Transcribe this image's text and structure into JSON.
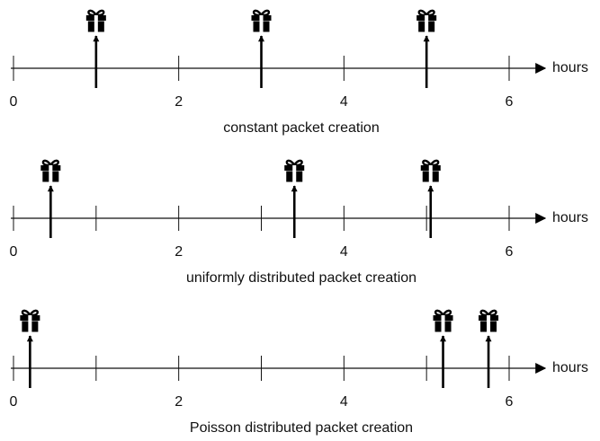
{
  "panels": [
    {
      "caption": "constant packet creation",
      "axis_label": "hours",
      "xlim": [
        0,
        6
      ],
      "ticks": [
        0,
        2,
        4,
        6
      ],
      "minor_ticks": [
        1,
        3,
        5
      ],
      "events": [
        1,
        3,
        5
      ]
    },
    {
      "caption": "uniformly distributed packet creation",
      "axis_label": "hours",
      "xlim": [
        0,
        6
      ],
      "ticks": [
        0,
        2,
        4,
        6
      ],
      "minor_ticks": [
        1,
        3,
        5
      ],
      "events": [
        0.45,
        3.4,
        5.05
      ]
    },
    {
      "caption": "Poisson distributed packet creation",
      "axis_label": "hours",
      "xlim": [
        0,
        6
      ],
      "ticks": [
        0,
        2,
        4,
        6
      ],
      "minor_ticks": [
        1,
        3,
        5
      ],
      "events": [
        0.2,
        5.2,
        5.75
      ]
    }
  ]
}
